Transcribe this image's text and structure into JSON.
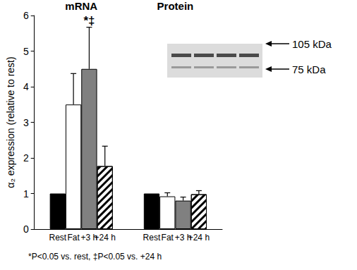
{
  "chart_data": {
    "type": "bar",
    "categories": [
      "mRNA",
      "Protein"
    ],
    "y_label": "α₂ expression (relative to rest)",
    "ylim": [
      0,
      6
    ],
    "yticks": [
      0,
      1,
      2,
      3,
      4,
      5,
      6
    ],
    "series": [
      {
        "name": "Rest",
        "color": "#000000",
        "values": [
          1,
          1
        ],
        "errors": [
          null,
          null
        ]
      },
      {
        "name": "Fat",
        "color": "#ffffff",
        "values": [
          3.5,
          0.92
        ],
        "errors": [
          0.87,
          0.1
        ]
      },
      {
        "name": "+3 h",
        "color": "#808080",
        "values": [
          4.5,
          0.8
        ],
        "errors": [
          1.17,
          0.1
        ]
      },
      {
        "name": "+24 h",
        "color": "#ffffff",
        "marker": "hatched",
        "values": [
          1.77,
          0.98
        ],
        "errors": [
          0.56,
          0.1
        ]
      }
    ],
    "annotations": [
      {
        "text": "*‡",
        "series": "+3 h",
        "category": "mRNA"
      }
    ],
    "footnote": "*P<0.05 vs. rest, ‡P<0.05 vs. +24 h",
    "inset_labels": [
      "105 kDa",
      "75 kDa"
    ]
  }
}
